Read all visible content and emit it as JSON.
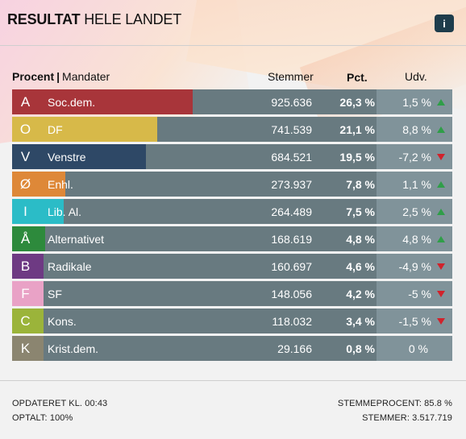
{
  "header": {
    "title_bold": "RESULTAT",
    "title_rest": " HELE LANDET",
    "info_label": "i"
  },
  "columns": {
    "toggle_active": "Procent",
    "toggle_sep": "|",
    "toggle_inactive": "Mandater",
    "votes": "Stemmer",
    "pct": "Pct.",
    "change": "Udv."
  },
  "parties": [
    {
      "letter": "A",
      "name": "Soc.dem.",
      "votes": "925.636",
      "pct": "26,3 %",
      "change": "1,5 %",
      "trend": "up",
      "share": 26.3,
      "color": "#a8353a"
    },
    {
      "letter": "O",
      "name": "DF",
      "votes": "741.539",
      "pct": "21,1 %",
      "change": "8,8 %",
      "trend": "up",
      "share": 21.1,
      "color": "#d7b949"
    },
    {
      "letter": "V",
      "name": "Venstre",
      "votes": "684.521",
      "pct": "19,5 %",
      "change": "-7,2 %",
      "trend": "down",
      "share": 19.5,
      "color": "#2e4866"
    },
    {
      "letter": "Ø",
      "name": "Enhl.",
      "votes": "273.937",
      "pct": "7,8 %",
      "change": "1,1 %",
      "trend": "up",
      "share": 7.8,
      "color": "#de8838"
    },
    {
      "letter": "I",
      "name": "Lib. Al.",
      "votes": "264.489",
      "pct": "7,5 %",
      "change": "2,5 %",
      "trend": "up",
      "share": 7.5,
      "color": "#2bbcc7"
    },
    {
      "letter": "Å",
      "name": "Alternativet",
      "votes": "168.619",
      "pct": "4,8 %",
      "change": "4,8 %",
      "trend": "up",
      "share": 4.8,
      "color": "#2d8a3c"
    },
    {
      "letter": "B",
      "name": "Radikale",
      "votes": "160.697",
      "pct": "4,6 %",
      "change": "-4,9 %",
      "trend": "down",
      "share": 4.6,
      "color": "#6e3a83"
    },
    {
      "letter": "F",
      "name": "SF",
      "votes": "148.056",
      "pct": "4,2 %",
      "change": "-5 %",
      "trend": "down",
      "share": 4.2,
      "color": "#e9a2c6"
    },
    {
      "letter": "C",
      "name": "Kons.",
      "votes": "118.032",
      "pct": "3,4 %",
      "change": "-1,5 %",
      "trend": "down",
      "share": 3.4,
      "color": "#9bb43a"
    },
    {
      "letter": "K",
      "name": "Krist.dem.",
      "votes": "29.166",
      "pct": "0,8 %",
      "change": "0 %",
      "trend": "none",
      "share": 0.8,
      "color": "#8b8570"
    }
  ],
  "footer": {
    "updated": "OPDATERET KL. 00:43",
    "counted": "OPTALT: 100%",
    "turnout": "STEMMEPROCENT: 85.8 %",
    "votes_total": "STEMMER: 3.517.719"
  }
}
